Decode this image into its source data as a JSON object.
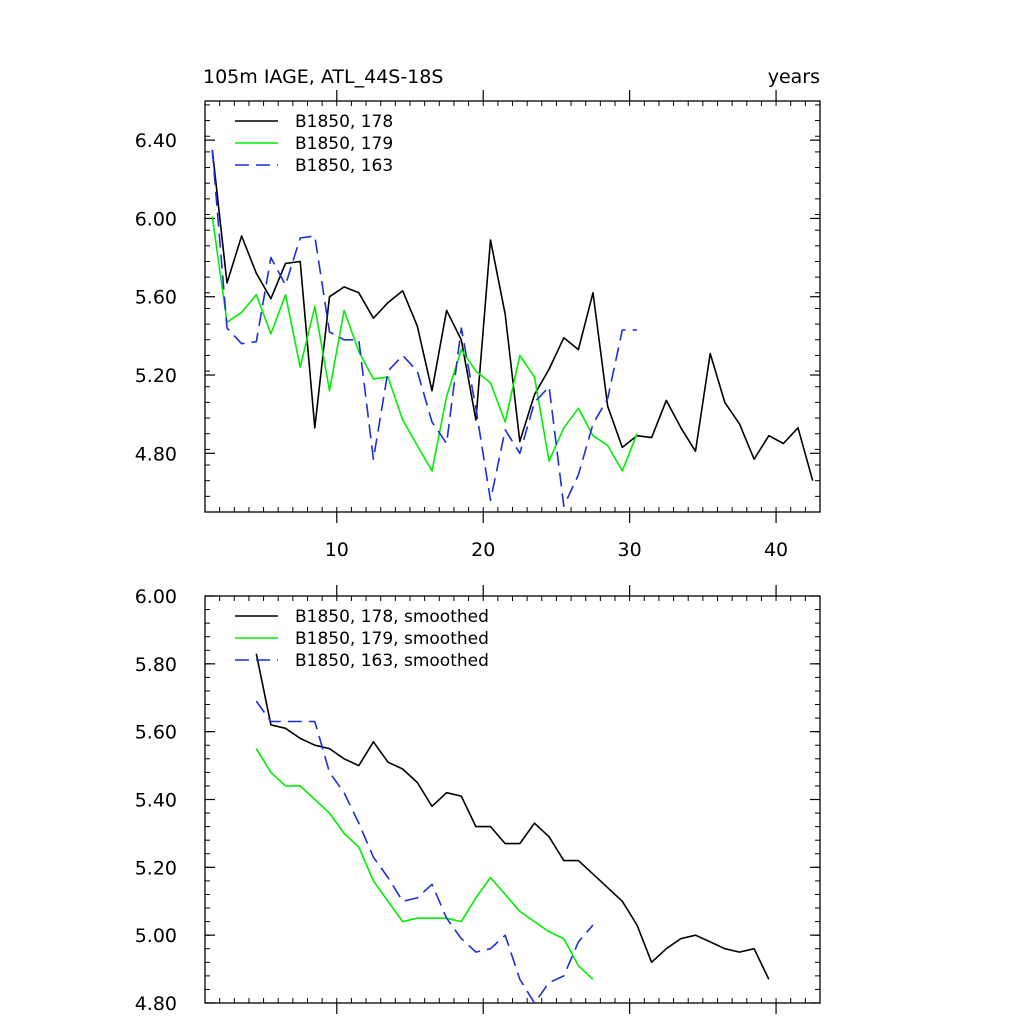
{
  "chart_data": [
    {
      "type": "line",
      "title": "105m IAGE, ATL_44S-18S",
      "title_right": "years",
      "xlim": [
        1,
        43
      ],
      "ylim": [
        4.5,
        6.6
      ],
      "xticks": [
        10,
        20,
        30,
        40
      ],
      "xtick_labels": [
        "10",
        "20",
        "30",
        "40"
      ],
      "yticks": [
        4.8,
        5.2,
        5.6,
        6.0,
        6.4
      ],
      "ytick_labels": [
        "4.80",
        "5.20",
        "5.60",
        "6.00",
        "6.40"
      ],
      "legend_position": "top-left",
      "series": [
        {
          "name": "B1850, 178",
          "color": "#000000",
          "dash": "solid",
          "x": [
            1.5,
            2.5,
            3.5,
            4.5,
            5.5,
            6.5,
            7.5,
            8.5,
            9.5,
            10.5,
            11.5,
            12.5,
            13.5,
            14.5,
            15.5,
            16.5,
            17.5,
            18.5,
            19.5,
            20.5,
            21.5,
            22.5,
            23.5,
            24.5,
            25.5,
            26.5,
            27.5,
            28.5,
            29.5,
            30.5,
            31.5,
            32.5,
            33.5,
            34.5,
            35.5,
            36.5,
            37.5,
            38.5,
            39.5,
            40.5,
            41.5,
            42.5
          ],
          "y": [
            6.35,
            5.67,
            5.91,
            5.72,
            5.59,
            5.77,
            5.78,
            4.93,
            5.6,
            5.65,
            5.62,
            5.49,
            5.57,
            5.63,
            5.45,
            5.12,
            5.53,
            5.38,
            4.97,
            5.89,
            5.51,
            4.86,
            5.1,
            5.23,
            5.39,
            5.33,
            5.62,
            5.04,
            4.83,
            4.89,
            4.88,
            5.07,
            4.93,
            4.81,
            5.31,
            5.06,
            4.95,
            4.77,
            4.89,
            4.85,
            4.93,
            4.66
          ]
        },
        {
          "name": "B1850, 179",
          "color": "#00ee00",
          "dash": "solid",
          "x": [
            1.5,
            2.5,
            3.5,
            4.5,
            5.5,
            6.5,
            7.5,
            8.5,
            9.5,
            10.5,
            11.5,
            12.5,
            13.5,
            14.5,
            15.5,
            16.5,
            17.5,
            18.5,
            19.5,
            20.5,
            21.5,
            22.5,
            23.5,
            24.5,
            25.5,
            26.5,
            27.5,
            28.5,
            29.5,
            30.5
          ],
          "y": [
            6.01,
            5.47,
            5.52,
            5.61,
            5.41,
            5.61,
            5.24,
            5.55,
            5.12,
            5.53,
            5.32,
            5.18,
            5.19,
            4.97,
            4.84,
            4.71,
            5.09,
            5.33,
            5.22,
            5.16,
            4.96,
            5.3,
            5.19,
            4.76,
            4.93,
            5.03,
            4.89,
            4.84,
            4.71,
            4.9
          ]
        },
        {
          "name": "B1850, 163",
          "color": "#1a2fd8",
          "dash": "dashed",
          "x": [
            1.5,
            2.5,
            3.5,
            4.5,
            5.5,
            6.5,
            7.5,
            8.5,
            9.5,
            10.5,
            11.5,
            12.5,
            13.5,
            14.5,
            15.5,
            16.5,
            17.5,
            18.5,
            19.5,
            20.5,
            21.5,
            22.5,
            23.5,
            24.5,
            25.5,
            26.5,
            27.5,
            28.5,
            29.5,
            30.5
          ],
          "y": [
            6.35,
            5.44,
            5.36,
            5.37,
            5.8,
            5.66,
            5.9,
            5.91,
            5.42,
            5.38,
            5.38,
            4.77,
            5.22,
            5.3,
            5.22,
            4.96,
            4.85,
            5.44,
            5.03,
            4.56,
            4.92,
            4.8,
            5.06,
            5.14,
            4.53,
            4.69,
            4.95,
            5.08,
            5.43,
            5.43
          ]
        }
      ]
    },
    {
      "type": "line",
      "xlim": [
        1,
        43
      ],
      "ylim": [
        4.8,
        6.0
      ],
      "xticks": [
        10,
        20,
        30,
        40
      ],
      "yticks": [
        4.8,
        5.0,
        5.2,
        5.4,
        5.6,
        5.8,
        6.0
      ],
      "ytick_labels": [
        "4.80",
        "5.00",
        "5.20",
        "5.40",
        "5.60",
        "5.80",
        "6.00"
      ],
      "legend_position": "top-left",
      "series": [
        {
          "name": "B1850, 178, smoothed",
          "color": "#000000",
          "dash": "solid",
          "x": [
            4.5,
            5.5,
            6.5,
            7.5,
            8.5,
            9.5,
            10.5,
            11.5,
            12.5,
            13.5,
            14.5,
            15.5,
            16.5,
            17.5,
            18.5,
            19.5,
            20.5,
            21.5,
            22.5,
            23.5,
            24.5,
            25.5,
            26.5,
            27.5,
            28.5,
            29.5,
            30.5,
            31.5,
            32.5,
            33.5,
            34.5,
            35.5,
            36.5,
            37.5,
            38.5,
            39.5
          ],
          "y": [
            5.83,
            5.62,
            5.61,
            5.58,
            5.56,
            5.55,
            5.52,
            5.5,
            5.57,
            5.51,
            5.49,
            5.45,
            5.38,
            5.42,
            5.41,
            5.32,
            5.32,
            5.27,
            5.27,
            5.33,
            5.29,
            5.22,
            5.22,
            5.18,
            5.14,
            5.1,
            5.03,
            4.92,
            4.96,
            4.99,
            5.0,
            4.98,
            4.96,
            4.95,
            4.96,
            4.87
          ]
        },
        {
          "name": "B1850, 179, smoothed",
          "color": "#00ee00",
          "dash": "solid",
          "x": [
            4.5,
            5.5,
            6.5,
            7.5,
            8.5,
            9.5,
            10.5,
            11.5,
            12.5,
            13.5,
            14.5,
            15.5,
            16.5,
            17.5,
            18.5,
            19.5,
            20.5,
            21.5,
            22.5,
            23.5,
            24.5,
            25.5,
            26.5,
            27.5
          ],
          "y": [
            5.55,
            5.48,
            5.44,
            5.44,
            5.4,
            5.36,
            5.3,
            5.26,
            5.16,
            5.1,
            5.04,
            5.05,
            5.05,
            5.05,
            5.04,
            5.11,
            5.17,
            5.12,
            5.07,
            5.04,
            5.01,
            4.99,
            4.91,
            4.87
          ]
        },
        {
          "name": "B1850, 163, smoothed",
          "color": "#1a2fd8",
          "dash": "dashed",
          "x": [
            4.5,
            5.5,
            6.5,
            7.5,
            8.5,
            9.5,
            10.5,
            11.5,
            12.5,
            13.5,
            14.5,
            15.5,
            16.5,
            17.5,
            18.5,
            19.5,
            20.5,
            21.5,
            22.5,
            23.5,
            24.5,
            25.5,
            26.5,
            27.5
          ],
          "y": [
            5.69,
            5.63,
            5.63,
            5.63,
            5.63,
            5.48,
            5.42,
            5.33,
            5.23,
            5.17,
            5.1,
            5.11,
            5.15,
            5.05,
            4.99,
            4.95,
            4.96,
            5.0,
            4.87,
            4.8,
            4.86,
            4.88,
            4.98,
            5.03
          ]
        }
      ]
    }
  ]
}
